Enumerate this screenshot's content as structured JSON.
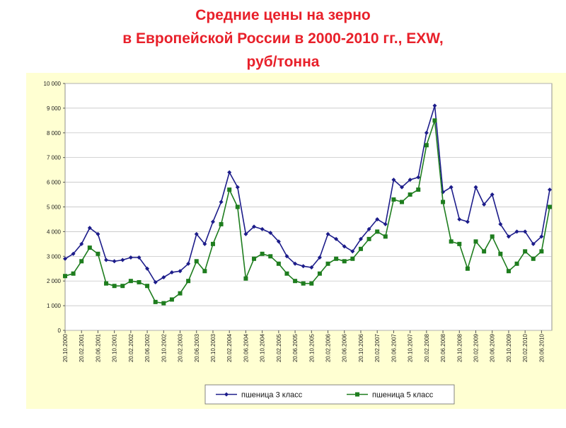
{
  "chart_data": {
    "type": "line",
    "title_lines": [
      "Средние цены на зерно",
      "в Европейской России в 2000-2010 гг., EXW,",
      "руб/тонна"
    ],
    "categories": [
      "20.10.2000",
      null,
      "20.02.2001",
      null,
      "20.06.2001",
      null,
      "20.10.2001",
      null,
      "20.02.2002",
      null,
      "20.06.2002",
      null,
      "20.10.2002",
      null,
      "20.02.2003",
      null,
      "20.06.2003",
      null,
      "20.10.2003",
      null,
      "20.02.2004",
      null,
      "20.06.2004",
      null,
      "20.10.2004",
      null,
      "20.02.2005",
      null,
      "20.06.2005",
      null,
      "20.10.2005",
      null,
      "20.02.2006",
      null,
      "20.06.2006",
      null,
      "20.10.2006",
      null,
      "20.02.2007",
      null,
      "20.06.2007",
      null,
      "20.10.2007",
      null,
      "20.02.2008",
      null,
      "20.06.2008",
      null,
      "20.10.2008",
      null,
      "20.02.2009",
      null,
      "20.06.2009",
      null,
      "20.10.2009",
      null,
      "20.02.2010",
      null,
      "20.06.2010",
      null
    ],
    "series": [
      {
        "name": "пшеница 3 класс",
        "color": "#1c1c8a",
        "marker": "diamond",
        "values": [
          2900,
          3100,
          3500,
          4150,
          3900,
          2850,
          2800,
          2850,
          2950,
          2950,
          2500,
          1950,
          2150,
          2350,
          2400,
          2700,
          3900,
          3500,
          4400,
          5200,
          6400,
          5800,
          3900,
          4200,
          4100,
          3950,
          3600,
          3000,
          2700,
          2600,
          2550,
          2950,
          3900,
          3700,
          3400,
          3200,
          3700,
          4100,
          4500,
          4300,
          6100,
          5800,
          6100,
          6200,
          8000,
          9100,
          5600,
          5800,
          4500,
          4400,
          5800,
          5100,
          5500,
          4300,
          3800,
          4000,
          4000,
          3500,
          3800,
          5700
        ]
      },
      {
        "name": "пшеница 5 класс",
        "color": "#1e7d1e",
        "marker": "square",
        "values": [
          2200,
          2300,
          2800,
          3350,
          3100,
          1900,
          1800,
          1800,
          2000,
          1950,
          1800,
          1150,
          1100,
          1250,
          1500,
          2000,
          2800,
          2400,
          3500,
          4300,
          5700,
          5000,
          2100,
          2900,
          3100,
          3000,
          2700,
          2300,
          2000,
          1900,
          1900,
          2300,
          2700,
          2900,
          2800,
          2900,
          3300,
          3700,
          4000,
          3800,
          5300,
          5200,
          5500,
          5700,
          7500,
          8500,
          5200,
          3600,
          3500,
          2500,
          3600,
          3200,
          3800,
          3100,
          2400,
          2700,
          3200,
          2900,
          3200,
          5000
        ]
      }
    ],
    "ylim": [
      0,
      10000
    ],
    "yticks": [
      0,
      {
        "value": 1000,
        "label": "1 000"
      },
      {
        "value": 2000,
        "label": "2 000"
      },
      {
        "value": 3000,
        "label": "3 000"
      },
      {
        "value": 4000,
        "label": "4 000"
      },
      {
        "value": 5000,
        "label": "5 000"
      },
      {
        "value": 6000,
        "label": "6 000"
      },
      {
        "value": 7000,
        "label": "7 000"
      },
      {
        "value": 8000,
        "label": "8 000"
      },
      {
        "value": 9000,
        "label": "9 000"
      },
      {
        "value": 10000,
        "label": "10 000"
      }
    ],
    "grid": true,
    "legend": "bottom"
  }
}
